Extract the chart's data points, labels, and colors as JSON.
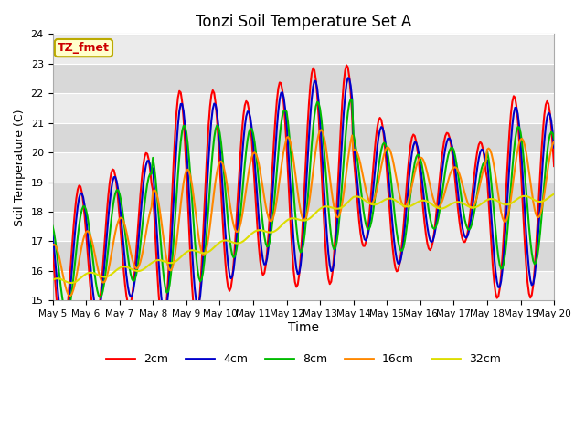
{
  "title": "Tonzi Soil Temperature Set A",
  "xlabel": "Time",
  "ylabel": "Soil Temperature (C)",
  "ylim": [
    15.0,
    24.0
  ],
  "yticks": [
    15.0,
    16.0,
    17.0,
    18.0,
    19.0,
    20.0,
    21.0,
    22.0,
    23.0,
    24.0
  ],
  "label_box_text": "TZ_fmet",
  "label_box_bg": "#ffffcc",
  "label_box_edge": "#bbaa00",
  "label_text_color": "#cc0000",
  "axes_bg_light": "#f0f0f0",
  "axes_bg_dark": "#e0e0e0",
  "line_colors": {
    "2cm": "#ff0000",
    "4cm": "#0000cc",
    "8cm": "#00bb00",
    "16cm": "#ff8800",
    "32cm": "#dddd00"
  },
  "legend_labels": [
    "2cm",
    "4cm",
    "8cm",
    "16cm",
    "32cm"
  ],
  "xtick_labels": [
    "May 5",
    "May 6",
    "May 7",
    "May 8",
    "May 9",
    "May 10",
    "May 11",
    "May 12",
    "May 13",
    "May 14",
    "May 15",
    "May 16",
    "May 17",
    "May 18",
    "May 19",
    "May 20"
  ],
  "figsize": [
    6.4,
    4.8
  ],
  "dpi": 100
}
